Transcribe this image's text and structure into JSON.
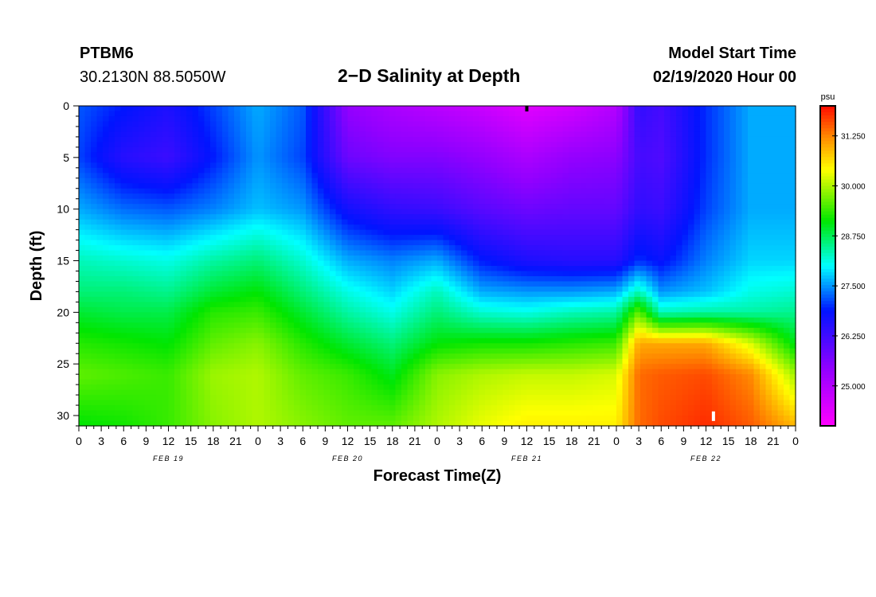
{
  "header": {
    "station": "PTBM6",
    "coords": "30.2130N 88.5050W",
    "title": "2−D Salinity at Depth",
    "model_start_label": "Model Start Time",
    "model_start_date": "02/19/2020 Hour 00"
  },
  "chart_data": {
    "type": "heatmap",
    "title": "2−D Salinity at Depth",
    "xlabel": "Forecast Time(Z)",
    "ylabel": "Depth (ft)",
    "xlim": [
      0,
      96
    ],
    "ylim": [
      31,
      0
    ],
    "x_tick_labels": [
      "0",
      "3",
      "6",
      "9",
      "12",
      "15",
      "18",
      "21",
      "0",
      "3",
      "6",
      "9",
      "12",
      "15",
      "18",
      "21",
      "0",
      "3",
      "6",
      "9",
      "12",
      "15",
      "18",
      "21",
      "0",
      "3",
      "6",
      "9",
      "12",
      "15",
      "18",
      "21",
      "0"
    ],
    "y_ticks": [
      0,
      5,
      10,
      15,
      20,
      25,
      30
    ],
    "date_labels": [
      {
        "label": "FEB 19",
        "hour": 12
      },
      {
        "label": "FEB 20",
        "hour": 36
      },
      {
        "label": "FEB 21",
        "hour": 60
      },
      {
        "label": "FEB 22",
        "hour": 84
      }
    ],
    "colorbar": {
      "unit": "psu",
      "min": 24.0,
      "max": 32.0,
      "tick_labels": [
        "31.250",
        "30.000",
        "28.750",
        "27.500",
        "26.250",
        "25.000"
      ],
      "tick_values": [
        31.25,
        30.0,
        28.75,
        27.5,
        26.25,
        25.0
      ]
    },
    "depths": [
      0,
      5,
      10,
      15,
      18,
      20,
      23,
      26,
      31
    ],
    "times": [
      0,
      6,
      12,
      18,
      24,
      30,
      36,
      42,
      48,
      54,
      60,
      66,
      72,
      75,
      78,
      84,
      90,
      96
    ],
    "salinity": [
      [
        27.2,
        26.9,
        26.6,
        27.1,
        27.6,
        27.2,
        25.4,
        25.1,
        24.9,
        24.7,
        24.4,
        24.6,
        25.0,
        26.4,
        26.2,
        27.0,
        27.6,
        27.6
      ],
      [
        27.1,
        26.5,
        26.3,
        26.9,
        27.5,
        27.1,
        25.8,
        25.6,
        25.6,
        25.4,
        25.1,
        25.4,
        25.5,
        26.2,
        26.1,
        27.0,
        27.6,
        27.6
      ],
      [
        27.6,
        27.3,
        27.2,
        27.4,
        27.7,
        27.5,
        26.7,
        26.4,
        26.3,
        26.0,
        25.8,
        25.9,
        25.9,
        26.4,
        26.3,
        27.1,
        27.6,
        27.6
      ],
      [
        28.3,
        28.2,
        28.1,
        28.4,
        28.6,
        28.2,
        27.6,
        27.4,
        27.6,
        26.9,
        26.6,
        26.5,
        26.5,
        27.0,
        26.8,
        27.4,
        27.8,
        27.8
      ],
      [
        28.6,
        28.6,
        28.5,
        28.9,
        29.1,
        28.6,
        28.1,
        27.8,
        28.3,
        27.6,
        27.5,
        27.5,
        27.6,
        28.3,
        27.5,
        27.7,
        28.1,
        28.2
      ],
      [
        28.9,
        28.8,
        28.8,
        29.3,
        29.4,
        28.9,
        28.4,
        28.1,
        28.6,
        28.2,
        28.1,
        28.3,
        28.4,
        29.6,
        28.3,
        28.4,
        28.4,
        28.5
      ],
      [
        29.3,
        29.2,
        29.1,
        29.6,
        29.8,
        29.3,
        28.9,
        28.6,
        29.1,
        29.2,
        29.2,
        29.3,
        29.4,
        31.0,
        31.0,
        31.0,
        30.2,
        29.0
      ],
      [
        29.6,
        29.5,
        29.4,
        29.9,
        30.0,
        29.6,
        29.4,
        29.0,
        29.8,
        30.0,
        30.1,
        30.1,
        30.2,
        31.4,
        31.5,
        31.6,
        31.2,
        29.9
      ],
      [
        29.1,
        29.2,
        29.4,
        29.8,
        30.0,
        29.8,
        29.6,
        29.6,
        30.0,
        30.3,
        30.5,
        30.5,
        30.5,
        31.4,
        31.6,
        31.8,
        31.5,
        30.9
      ]
    ],
    "marker_hours": [
      60,
      85
    ]
  }
}
